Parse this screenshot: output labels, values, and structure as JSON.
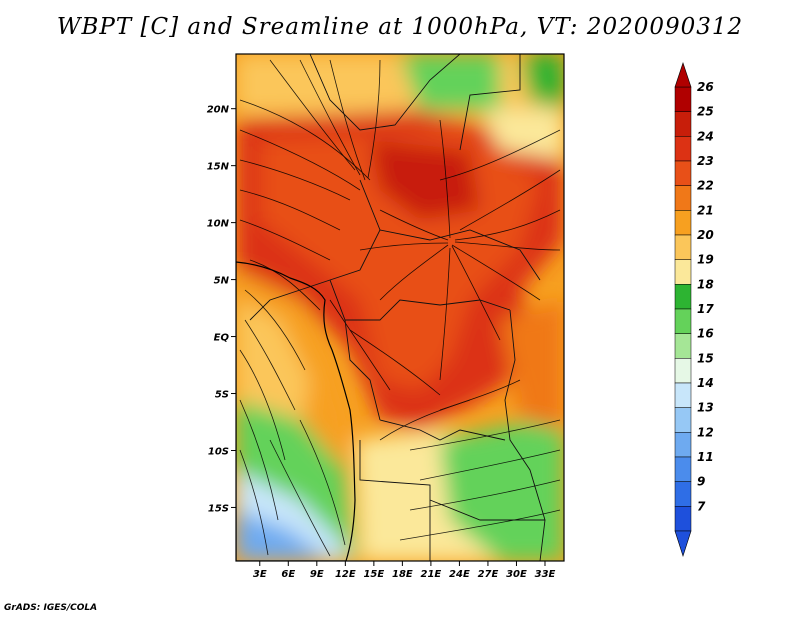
{
  "title": "WBPT [C] and Sreamline at 1000hPa, VT: 2020090312",
  "footer": "GrADS: IGES/COLA",
  "chart_data": {
    "type": "heatmap",
    "title": "WBPT [C] and Sreamline at 1000hPa, VT: 2020090312",
    "variable": "Wet-bulb potential temperature",
    "level": "1000hPa",
    "valid_time": "2020090312",
    "x_ticks": [
      "3E",
      "6E",
      "9E",
      "12E",
      "15E",
      "18E",
      "21E",
      "24E",
      "27E",
      "30E",
      "33E"
    ],
    "x_tick_values": [
      3,
      6,
      9,
      12,
      15,
      18,
      21,
      24,
      27,
      30,
      33
    ],
    "y_ticks": [
      "20N",
      "15N",
      "10N",
      "5N",
      "EQ",
      "5S",
      "10S",
      "15S"
    ],
    "y_tick_values": [
      20,
      15,
      10,
      5,
      0,
      -5,
      -10,
      -15
    ],
    "xlim": [
      0.5,
      35
    ],
    "ylim": [
      -19.7,
      24.8
    ],
    "colorbar": {
      "labels": [
        "26",
        "25",
        "24",
        "23",
        "22",
        "21",
        "20",
        "19",
        "18",
        "17",
        "16",
        "15",
        "14",
        "13",
        "12",
        "11",
        "9",
        "7"
      ],
      "colors": [
        "#b00000",
        "#c81e0a",
        "#dc3214",
        "#e85018",
        "#f07818",
        "#f7a020",
        "#fbc65a",
        "#fbe89a",
        "#2db432",
        "#64d25a",
        "#a5e696",
        "#e6f8e6",
        "#c8e6fa",
        "#96c8f5",
        "#6eaaf0",
        "#4b8cec",
        "#2f6ee6",
        "#1e50dc"
      ]
    },
    "region_values": [
      {
        "lon": [
          0.5,
          35
        ],
        "lat": [
          -19.7,
          24.8
        ],
        "wbpt": 20
      },
      {
        "lon": [
          1,
          22
        ],
        "lat": [
          12,
          19
        ],
        "wbpt": 24
      },
      {
        "lon": [
          15,
          25
        ],
        "lat": [
          -5,
          14
        ],
        "wbpt": 24
      },
      {
        "lon": [
          17,
          22
        ],
        "lat": [
          14,
          18
        ],
        "wbpt": 25
      },
      {
        "lon": [
          20,
          28
        ],
        "lat": [
          5,
          12
        ],
        "wbpt": 24
      },
      {
        "lon": [
          5,
          15
        ],
        "lat": [
          2,
          10
        ],
        "wbpt": 23
      },
      {
        "lon": [
          1,
          10
        ],
        "lat": [
          -4,
          4
        ],
        "wbpt": 21
      },
      {
        "lon": [
          0.5,
          6
        ],
        "lat": [
          -12,
          -5
        ],
        "wbpt": 18
      },
      {
        "lon": [
          0.5,
          12
        ],
        "lat": [
          -19.7,
          -15
        ],
        "wbpt": 13
      },
      {
        "lon": [
          22,
          31
        ],
        "lat": [
          -14,
          -7
        ],
        "wbpt": 17
      },
      {
        "lon": [
          16,
          22
        ],
        "lat": [
          21,
          24
        ],
        "wbpt": 18
      },
      {
        "lon": [
          26,
          34
        ],
        "lat": [
          17,
          24
        ],
        "wbpt": 19
      }
    ]
  }
}
